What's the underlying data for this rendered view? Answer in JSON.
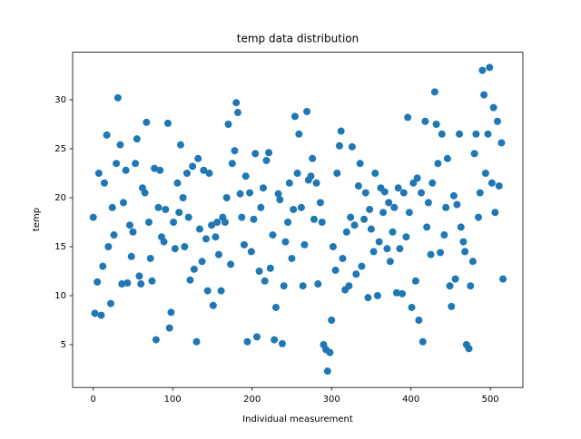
{
  "chart_data": {
    "type": "scatter",
    "title": "temp data distribution",
    "x_label": "Individual measurement",
    "y_label": "temp",
    "color": "#1f77b4",
    "x": [
      0,
      2,
      5,
      7,
      10,
      12,
      14,
      17,
      19,
      22,
      24,
      26,
      29,
      31,
      34,
      36,
      38,
      41,
      43,
      46,
      48,
      50,
      53,
      55,
      58,
      60,
      62,
      65,
      67,
      70,
      72,
      74,
      77,
      79,
      82,
      84,
      86,
      89,
      91,
      94,
      96,
      98,
      101,
      103,
      106,
      108,
      110,
      113,
      115,
      118,
      120,
      122,
      125,
      127,
      130,
      132,
      134,
      137,
      139,
      142,
      144,
      146,
      149,
      151,
      154,
      156,
      158,
      161,
      163,
      166,
      168,
      170,
      173,
      175,
      178,
      180,
      182,
      185,
      187,
      190,
      192,
      194,
      197,
      199,
      202,
      204,
      206,
      209,
      211,
      214,
      216,
      218,
      221,
      223,
      226,
      228,
      230,
      233,
      235,
      238,
      240,
      242,
      245,
      247,
      250,
      252,
      254,
      257,
      259,
      262,
      264,
      266,
      269,
      271,
      274,
      276,
      278,
      281,
      283,
      286,
      288,
      290,
      293,
      295,
      298,
      300,
      302,
      305,
      307,
      310,
      312,
      314,
      317,
      319,
      322,
      324,
      326,
      329,
      331,
      334,
      336,
      338,
      341,
      343,
      346,
      348,
      350,
      353,
      355,
      358,
      360,
      362,
      365,
      367,
      370,
      372,
      374,
      377,
      379,
      382,
      384,
      386,
      389,
      391,
      394,
      396,
      398,
      401,
      403,
      406,
      408,
      410,
      413,
      415,
      418,
      420,
      422,
      425,
      427,
      430,
      432,
      434,
      437,
      439,
      442,
      444,
      446,
      449,
      451,
      454,
      456,
      458,
      461,
      463,
      466,
      468,
      470,
      473,
      475,
      478,
      480,
      482,
      485,
      487,
      490,
      492,
      494,
      497,
      499,
      502,
      504,
      506,
      509,
      511,
      514,
      516
    ],
    "values": [
      18,
      8.2,
      11.4,
      22.5,
      8,
      13,
      21.5,
      26.4,
      15,
      9.2,
      19,
      16.2,
      23.5,
      30.2,
      25.4,
      11.2,
      19.5,
      22.8,
      11.3,
      17.2,
      14,
      16.5,
      23.5,
      26,
      12,
      11.2,
      21,
      20.5,
      27.7,
      17.5,
      13.8,
      11.5,
      23,
      5.5,
      19,
      22.8,
      16,
      15.5,
      18.8,
      27.6,
      6.7,
      8.3,
      17.5,
      14.8,
      21.5,
      18.5,
      25.4,
      20,
      15,
      22.5,
      18,
      11.6,
      23.2,
      12.7,
      5.3,
      24,
      16.8,
      13.5,
      22.8,
      15.8,
      10.5,
      22.5,
      17.2,
      9,
      16,
      17.5,
      14.2,
      10.5,
      18,
      17.5,
      20,
      27.5,
      13.2,
      23.5,
      24.8,
      29.7,
      28.7,
      20.4,
      18,
      15.2,
      22.2,
      5.3,
      20.5,
      14.5,
      17.8,
      24.5,
      5.8,
      12.5,
      19,
      21,
      11.5,
      23.8,
      24.6,
      12.8,
      16.2,
      5.5,
      8.8,
      20.4,
      19.8,
      5.1,
      11,
      15.5,
      17.5,
      21.5,
      13.8,
      18.8,
      28.3,
      22.5,
      26.5,
      19,
      11,
      15.2,
      28.8,
      21.8,
      22.2,
      24,
      17.8,
      21.5,
      11.2,
      19.5,
      17.5,
      5,
      4.5,
      2.3,
      4.2,
      7.5,
      15,
      12.6,
      22.5,
      25.3,
      26.8,
      13.8,
      10.6,
      16.5,
      11,
      18,
      25.2,
      17.2,
      12.2,
      21.2,
      23.5,
      13,
      17.8,
      20.5,
      9.8,
      18.8,
      16.8,
      14.5,
      22.5,
      10,
      15.5,
      21,
      18.5,
      20.6,
      14.8,
      19.5,
      13.5,
      16.5,
      19,
      10.3,
      21,
      14.8,
      10.2,
      20.5,
      16,
      28.2,
      18.5,
      8.8,
      21.5,
      11.5,
      22,
      7.5,
      20.5,
      5.3,
      27.8,
      17,
      19.5,
      14.2,
      21.5,
      30.8,
      27.5,
      23.5,
      14.4,
      26.5,
      16.2,
      19,
      24,
      11,
      8.9,
      20.2,
      11.7,
      19.3,
      26.5,
      17,
      15.5,
      14.5,
      5,
      4.6,
      11,
      13.5,
      24.5,
      26.5,
      18,
      20.5,
      33,
      30.5,
      22.5,
      26.5,
      33.3,
      21.5,
      29.2,
      18.5,
      27.8,
      21.2,
      25.6,
      11.7
    ],
    "xlim": [
      -26,
      541
    ],
    "ylim": [
      0.63,
      34.85
    ],
    "xticks": [
      0,
      100,
      200,
      300,
      400,
      500
    ],
    "yticks": [
      5,
      10,
      15,
      20,
      25,
      30
    ]
  }
}
